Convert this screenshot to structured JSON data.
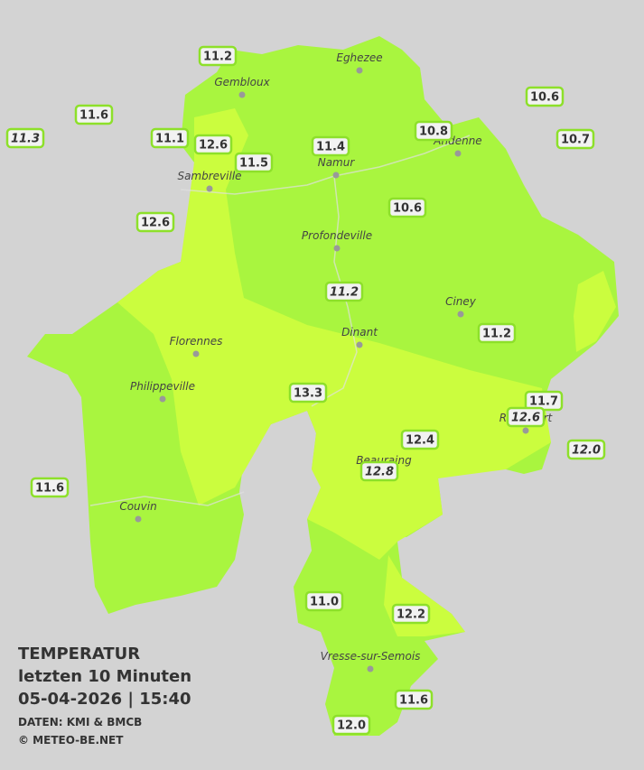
{
  "title": [
    "TEMPERATUR",
    "letzten 10 Minuten",
    "05-04-2026  |  15:40"
  ],
  "credits": [
    "DATEN: KMI & BMCB",
    "© METEO-BE.NET"
  ],
  "cities": [
    "Eghezee",
    "Gembloux",
    "Andenne",
    "Namur",
    "Sambreville",
    "Profondeville",
    "Ciney",
    "Dinant",
    "Florennes",
    "Philippeville",
    "Rochefort",
    "Beauraing",
    "Couvin",
    "Vresse-sur-Semois"
  ],
  "stations": [
    "11.2",
    "11.6",
    "11.3",
    "11.1",
    "12.6",
    "11.5",
    "11.4",
    "10.8",
    "10.6",
    "10.7",
    "12.6",
    "10.6",
    "11.2",
    "11.2",
    "13.3",
    "11.7",
    "12.6",
    "12.0",
    "12.4",
    "12.8",
    "11.6",
    "11.0",
    "12.2",
    "11.6",
    "12.0"
  ]
}
